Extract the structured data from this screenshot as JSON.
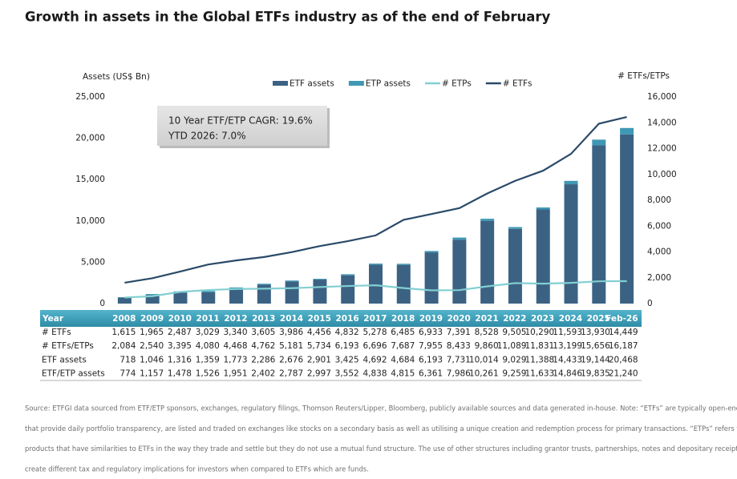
{
  "chart_data": {
    "type": "bar-line",
    "title": "Growth in assets in the Global ETFs industry as of the end of February",
    "y_label": "Assets (US$ Bn)",
    "y2_label": "# ETFs/ETPs",
    "annotations": [
      "10 Year ETF/ETP CAGR: 19.6%",
      "YTD 2026: 7.0%"
    ],
    "categories": [
      "2008",
      "2009",
      "2010",
      "2011",
      "2012",
      "2013",
      "2014",
      "2015",
      "2016",
      "2017",
      "2018",
      "2019",
      "2020",
      "2021",
      "2022",
      "2023",
      "2024",
      "2025",
      "Feb-26"
    ],
    "series": [
      {
        "name": "ETF assets",
        "kind": "bar",
        "color": "#3b6283",
        "values": [
          718,
          1046,
          1316,
          1359,
          1773,
          2286,
          2676,
          2901,
          3425,
          4692,
          4684,
          6193,
          7731,
          10014,
          9029,
          11388,
          14433,
          19144,
          20468
        ]
      },
      {
        "name": "ETP assets",
        "kind": "bar",
        "color": "#3f98b4",
        "values": [
          56,
          111,
          162,
          167,
          178,
          116,
          111,
          96,
          127,
          146,
          131,
          168,
          255,
          247,
          230,
          245,
          413,
          691,
          772
        ]
      },
      {
        "name": "# ETPs",
        "kind": "line",
        "axis": "y2",
        "color": "#82cfd2",
        "values": [
          469,
          575,
          908,
          1051,
          1128,
          1157,
          1195,
          1278,
          1361,
          1418,
          1202,
          1022,
          1042,
          1332,
          1584,
          1541,
          1606,
          1726,
          1738
        ]
      },
      {
        "name": "# ETFs",
        "kind": "line",
        "axis": "y2",
        "color": "#2a4a68",
        "values": [
          1615,
          1965,
          2487,
          3029,
          3340,
          3605,
          3986,
          4456,
          4832,
          5278,
          6485,
          6933,
          7391,
          8528,
          9505,
          10290,
          11593,
          13930,
          14449
        ]
      }
    ],
    "ylim": [
      0,
      25000
    ],
    "yticks": [
      0,
      {
        "value": 5000,
        "label": "5,000"
      },
      {
        "value": 10000,
        "label": "10,000"
      },
      {
        "value": 15000,
        "label": "15,000"
      },
      {
        "value": 20000,
        "label": "20,000"
      },
      {
        "value": 25000,
        "label": "25,000"
      }
    ],
    "y2lim": [
      0,
      16000
    ],
    "y2ticks": [
      0,
      {
        "value": 2000,
        "label": "2,000"
      },
      {
        "value": 4000,
        "label": "4,000"
      },
      {
        "value": 6000,
        "label": "6,000"
      },
      {
        "value": 8000,
        "label": "8,000"
      },
      {
        "value": 10000,
        "label": "10,000"
      },
      {
        "value": 12000,
        "label": "12,000"
      },
      {
        "value": 14000,
        "label": "14,000"
      },
      {
        "value": 16000,
        "label": "16,000"
      }
    ],
    "grid": false,
    "legend": "top"
  },
  "table": {
    "header": "Year",
    "rows": [
      {
        "label": "# ETFs",
        "cells": [
          "1,615",
          "1,965",
          "2,487",
          "3,029",
          "3,340",
          "3,605",
          "3,986",
          "4,456",
          "4,832",
          "5,278",
          "6,485",
          "6,933",
          "7,391",
          "8,528",
          "9,505",
          "10,290",
          "11,593",
          "13,930",
          "14,449"
        ]
      },
      {
        "label": "# ETFs/ETPs",
        "cells": [
          "2,084",
          "2,540",
          "3,395",
          "4,080",
          "4,468",
          "4,762",
          "5,181",
          "5,734",
          "6,193",
          "6,696",
          "7,687",
          "7,955",
          "8,433",
          "9,860",
          "11,089",
          "11,831",
          "13,199",
          "15,656",
          "16,187"
        ]
      },
      {
        "label": "ETF assets",
        "cells": [
          "718",
          "1,046",
          "1,316",
          "1,359",
          "1,773",
          "2,286",
          "2,676",
          "2,901",
          "3,425",
          "4,692",
          "4,684",
          "6,193",
          "7,731",
          "10,014",
          "9,029",
          "11,388",
          "14,433",
          "19,144",
          "20,468"
        ]
      },
      {
        "label": "ETF/ETP assets",
        "cells": [
          "774",
          "1,157",
          "1,478",
          "1,526",
          "1,951",
          "2,402",
          "2,787",
          "2,997",
          "3,552",
          "4,838",
          "4,815",
          "6,361",
          "7,986",
          "10,261",
          "9,259",
          "11,633",
          "14,846",
          "19,835",
          "21,240"
        ]
      }
    ]
  },
  "footnote": [
    "Source: ETFGI data sourced from ETF/ETP sponsors, exchanges, regulatory filings, Thomson Reuters/Lipper, Bloomberg, publicly available sources and data generated in-house. Note: “ETFs” are typically open-end index funds",
    "that provide daily portfolio transparency, are listed and traded on exchanges like stocks on a secondary basis as well as utilising a unique creation and redemption process for primary transactions. “ETPs” refers to other",
    "products that have similarities to ETFs in the way they trade and settle but they do not use a mutual fund structure. The use of other structures including grantor trusts, partnerships, notes and depositary receipts by ETPs can",
    "create different tax and regulatory implications for investors when compared to ETFs which are funds."
  ]
}
